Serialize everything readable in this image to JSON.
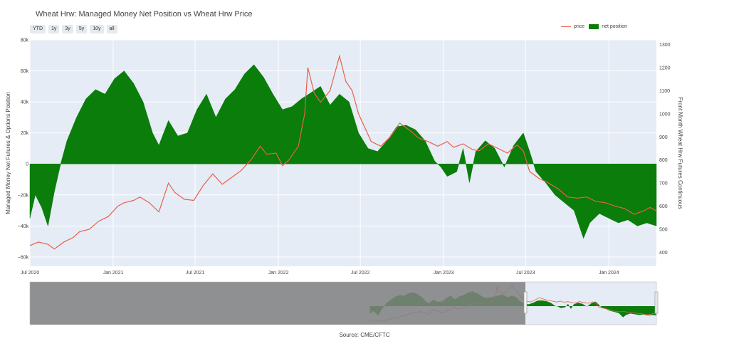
{
  "title": "Wheat Hrw: Managed Money Net Position vs Wheat Hrw Price",
  "range_buttons": [
    "YTD",
    "1y",
    "3y",
    "5y",
    "10y",
    "all"
  ],
  "legend": {
    "price": "price",
    "net": "net position"
  },
  "source": "Source: CME/CFTC",
  "colors": {
    "price": "#e8604a",
    "net": "#0a7d0a",
    "plot_bg": "#e5ecf6"
  },
  "chart_data": {
    "type": "area",
    "ylabel_left": "Managed Money Net Futures & Options Position",
    "ylabel_right": "Front Month Wheat Hrw Futures Continuous",
    "x_range": [
      "2020-07-01",
      "2024-04-15"
    ],
    "y_left_range": [
      -66000,
      80000
    ],
    "y_right_range": [
      340,
      1320
    ],
    "x_ticks": [
      {
        "date": "2020-07-01",
        "label": "Jul 2020"
      },
      {
        "date": "2021-01-01",
        "label": "Jan 2021"
      },
      {
        "date": "2021-07-01",
        "label": "Jul 2021"
      },
      {
        "date": "2022-01-01",
        "label": "Jan 2022"
      },
      {
        "date": "2022-07-01",
        "label": "Jul 2022"
      },
      {
        "date": "2023-01-01",
        "label": "Jan 2023"
      },
      {
        "date": "2023-07-01",
        "label": "Jul 2023"
      },
      {
        "date": "2024-01-01",
        "label": "Jan 2024"
      }
    ],
    "y_left_ticks": [
      {
        "v": -60000,
        "label": "−60k"
      },
      {
        "v": -40000,
        "label": "−40k"
      },
      {
        "v": -20000,
        "label": "−20k"
      },
      {
        "v": 0,
        "label": "0"
      },
      {
        "v": 20000,
        "label": "20k"
      },
      {
        "v": 40000,
        "label": "40k"
      },
      {
        "v": 60000,
        "label": "60k"
      },
      {
        "v": 80000,
        "label": "80k"
      }
    ],
    "y_right_ticks": [
      {
        "v": 400,
        "label": "400"
      },
      {
        "v": 500,
        "label": "500"
      },
      {
        "v": 600,
        "label": "600"
      },
      {
        "v": 700,
        "label": "700"
      },
      {
        "v": 800,
        "label": "800"
      },
      {
        "v": 900,
        "label": "900"
      },
      {
        "v": 1000,
        "label": "1000"
      },
      {
        "v": 1100,
        "label": "1100"
      },
      {
        "v": 1200,
        "label": "1200"
      },
      {
        "v": 1300,
        "label": "1300"
      }
    ],
    "series": [
      {
        "name": "price",
        "axis": "right",
        "points": [
          [
            "2020-07-01",
            430
          ],
          [
            "2020-07-20",
            445
          ],
          [
            "2020-08-10",
            435
          ],
          [
            "2020-08-24",
            415
          ],
          [
            "2020-09-14",
            445
          ],
          [
            "2020-10-05",
            465
          ],
          [
            "2020-10-19",
            490
          ],
          [
            "2020-11-09",
            500
          ],
          [
            "2020-11-30",
            535
          ],
          [
            "2020-12-21",
            555
          ],
          [
            "2021-01-11",
            600
          ],
          [
            "2021-01-25",
            615
          ],
          [
            "2021-02-15",
            625
          ],
          [
            "2021-03-01",
            640
          ],
          [
            "2021-03-22",
            615
          ],
          [
            "2021-04-12",
            575
          ],
          [
            "2021-05-03",
            700
          ],
          [
            "2021-05-17",
            660
          ],
          [
            "2021-06-07",
            630
          ],
          [
            "2021-06-28",
            625
          ],
          [
            "2021-07-19",
            690
          ],
          [
            "2021-08-09",
            740
          ],
          [
            "2021-08-30",
            695
          ],
          [
            "2021-09-20",
            725
          ],
          [
            "2021-10-11",
            755
          ],
          [
            "2021-11-01",
            800
          ],
          [
            "2021-11-22",
            860
          ],
          [
            "2021-12-06",
            825
          ],
          [
            "2021-12-27",
            830
          ],
          [
            "2022-01-10",
            775
          ],
          [
            "2022-01-24",
            800
          ],
          [
            "2022-02-14",
            860
          ],
          [
            "2022-02-28",
            1000
          ],
          [
            "2022-03-07",
            1200
          ],
          [
            "2022-03-21",
            1090
          ],
          [
            "2022-04-04",
            1050
          ],
          [
            "2022-04-25",
            1100
          ],
          [
            "2022-05-16",
            1250
          ],
          [
            "2022-05-30",
            1140
          ],
          [
            "2022-06-13",
            1100
          ],
          [
            "2022-06-27",
            1000
          ],
          [
            "2022-07-11",
            940
          ],
          [
            "2022-07-25",
            880
          ],
          [
            "2022-08-15",
            860
          ],
          [
            "2022-09-05",
            900
          ],
          [
            "2022-09-26",
            960
          ],
          [
            "2022-10-17",
            930
          ],
          [
            "2022-11-07",
            895
          ],
          [
            "2022-11-28",
            880
          ],
          [
            "2022-12-19",
            860
          ],
          [
            "2023-01-09",
            880
          ],
          [
            "2023-01-23",
            855
          ],
          [
            "2023-02-13",
            870
          ],
          [
            "2023-03-06",
            845
          ],
          [
            "2023-03-20",
            840
          ],
          [
            "2023-04-10",
            870
          ],
          [
            "2023-05-01",
            850
          ],
          [
            "2023-05-22",
            830
          ],
          [
            "2023-06-12",
            865
          ],
          [
            "2023-06-26",
            840
          ],
          [
            "2023-07-10",
            750
          ],
          [
            "2023-07-31",
            720
          ],
          [
            "2023-08-21",
            700
          ],
          [
            "2023-09-11",
            675
          ],
          [
            "2023-10-02",
            640
          ],
          [
            "2023-10-23",
            635
          ],
          [
            "2023-11-13",
            640
          ],
          [
            "2023-12-04",
            620
          ],
          [
            "2023-12-25",
            615
          ],
          [
            "2024-01-15",
            600
          ],
          [
            "2024-02-05",
            590
          ],
          [
            "2024-02-26",
            565
          ],
          [
            "2024-03-18",
            580
          ],
          [
            "2024-04-01",
            595
          ],
          [
            "2024-04-15",
            580
          ]
        ]
      },
      {
        "name": "net position",
        "axis": "left",
        "points": [
          [
            "2020-07-01",
            -35000
          ],
          [
            "2020-07-13",
            -20000
          ],
          [
            "2020-07-27",
            -28000
          ],
          [
            "2020-08-10",
            -40000
          ],
          [
            "2020-08-24",
            -18000
          ],
          [
            "2020-09-07",
            0
          ],
          [
            "2020-09-21",
            15000
          ],
          [
            "2020-10-12",
            30000
          ],
          [
            "2020-11-02",
            42000
          ],
          [
            "2020-11-23",
            48000
          ],
          [
            "2020-12-14",
            45000
          ],
          [
            "2021-01-04",
            55000
          ],
          [
            "2021-01-25",
            60000
          ],
          [
            "2021-02-15",
            52000
          ],
          [
            "2021-03-08",
            40000
          ],
          [
            "2021-03-29",
            20000
          ],
          [
            "2021-04-12",
            12000
          ],
          [
            "2021-05-03",
            28000
          ],
          [
            "2021-05-24",
            18000
          ],
          [
            "2021-06-14",
            20000
          ],
          [
            "2021-07-05",
            35000
          ],
          [
            "2021-07-26",
            45000
          ],
          [
            "2021-08-16",
            30000
          ],
          [
            "2021-09-06",
            42000
          ],
          [
            "2021-09-27",
            48000
          ],
          [
            "2021-10-18",
            58000
          ],
          [
            "2021-11-08",
            64000
          ],
          [
            "2021-11-29",
            56000
          ],
          [
            "2021-12-20",
            45000
          ],
          [
            "2022-01-10",
            35000
          ],
          [
            "2022-01-31",
            37000
          ],
          [
            "2022-02-21",
            42000
          ],
          [
            "2022-03-14",
            46000
          ],
          [
            "2022-04-04",
            50000
          ],
          [
            "2022-04-25",
            38000
          ],
          [
            "2022-05-16",
            45000
          ],
          [
            "2022-06-06",
            40000
          ],
          [
            "2022-06-27",
            20000
          ],
          [
            "2022-07-18",
            10000
          ],
          [
            "2022-08-08",
            8000
          ],
          [
            "2022-08-29",
            15000
          ],
          [
            "2022-09-19",
            24000
          ],
          [
            "2022-10-10",
            25000
          ],
          [
            "2022-10-31",
            22000
          ],
          [
            "2022-11-21",
            15000
          ],
          [
            "2022-12-12",
            2000
          ],
          [
            "2022-12-26",
            -2000
          ],
          [
            "2023-01-09",
            -8000
          ],
          [
            "2023-01-30",
            -5000
          ],
          [
            "2023-02-13",
            10000
          ],
          [
            "2023-02-27",
            -12000
          ],
          [
            "2023-03-13",
            8000
          ],
          [
            "2023-04-03",
            15000
          ],
          [
            "2023-04-24",
            10000
          ],
          [
            "2023-05-15",
            -2000
          ],
          [
            "2023-06-05",
            12000
          ],
          [
            "2023-06-26",
            20000
          ],
          [
            "2023-07-10",
            8000
          ],
          [
            "2023-07-24",
            -5000
          ],
          [
            "2023-08-14",
            -12000
          ],
          [
            "2023-09-04",
            -20000
          ],
          [
            "2023-09-25",
            -25000
          ],
          [
            "2023-10-16",
            -30000
          ],
          [
            "2023-11-06",
            -48000
          ],
          [
            "2023-11-20",
            -38000
          ],
          [
            "2023-12-11",
            -32000
          ],
          [
            "2024-01-01",
            -35000
          ],
          [
            "2024-01-22",
            -38000
          ],
          [
            "2024-02-12",
            -36000
          ],
          [
            "2024-03-04",
            -40000
          ],
          [
            "2024-03-25",
            -38000
          ],
          [
            "2024-04-15",
            -40000
          ]
        ]
      }
    ]
  }
}
